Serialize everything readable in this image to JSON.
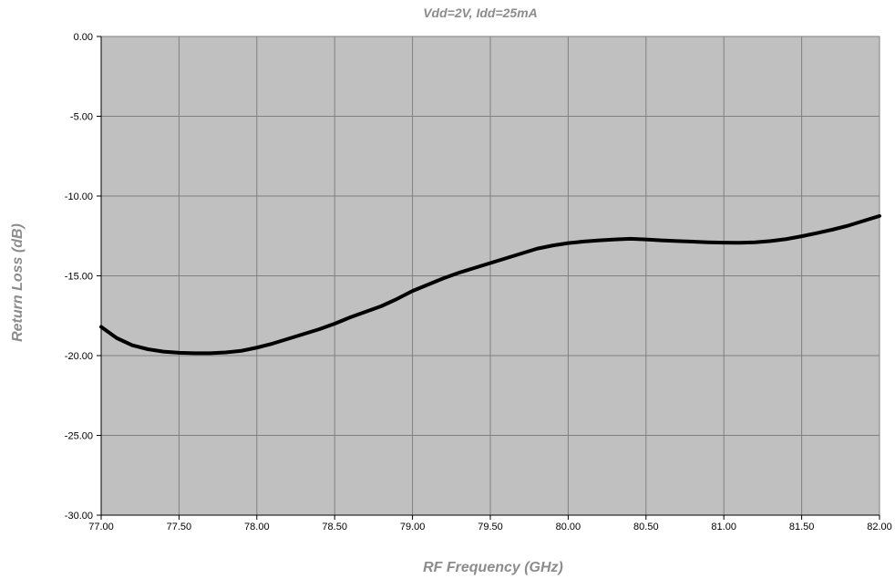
{
  "chart_data": {
    "type": "line",
    "title": "Vdd=2V, Idd=25mA",
    "xlabel": "RF Frequency (GHz)",
    "ylabel": "Return Loss (dB)",
    "xlim": [
      77.0,
      82.0
    ],
    "ylim": [
      -30.0,
      0.0
    ],
    "x_ticks": [
      "77.00",
      "77.50",
      "78.00",
      "78.50",
      "79.00",
      "79.50",
      "80.00",
      "80.50",
      "81.00",
      "81.50",
      "82.00"
    ],
    "y_ticks": [
      "0.00",
      "-5.00",
      "-10.00",
      "-15.00",
      "-20.00",
      "-25.00",
      "-30.00"
    ],
    "grid": true,
    "colors": {
      "plot_background": "#c0c0c0",
      "grid": "#808080",
      "line": "#000000",
      "label_text": "#8c8c8c"
    },
    "series": [
      {
        "x": [
          77.0,
          77.1,
          77.2,
          77.3,
          77.4,
          77.5,
          77.6,
          77.7,
          77.8,
          77.9,
          78.0,
          78.1,
          78.2,
          78.3,
          78.4,
          78.5,
          78.6,
          78.7,
          78.8,
          78.9,
          79.0,
          79.1,
          79.2,
          79.3,
          79.4,
          79.5,
          79.6,
          79.7,
          79.8,
          79.9,
          80.0,
          80.1,
          80.2,
          80.3,
          80.4,
          80.5,
          80.6,
          80.7,
          80.8,
          80.9,
          81.0,
          81.1,
          81.2,
          81.3,
          81.4,
          81.5,
          81.6,
          81.7,
          81.8,
          81.9,
          82.0
        ],
        "values": [
          -18.2,
          -18.9,
          -19.35,
          -19.6,
          -19.75,
          -19.82,
          -19.85,
          -19.85,
          -19.8,
          -19.7,
          -19.5,
          -19.25,
          -18.95,
          -18.65,
          -18.35,
          -18.0,
          -17.6,
          -17.25,
          -16.9,
          -16.45,
          -15.95,
          -15.55,
          -15.15,
          -14.8,
          -14.5,
          -14.2,
          -13.9,
          -13.6,
          -13.3,
          -13.1,
          -12.95,
          -12.85,
          -12.78,
          -12.72,
          -12.68,
          -12.72,
          -12.78,
          -12.82,
          -12.86,
          -12.9,
          -12.92,
          -12.93,
          -12.9,
          -12.82,
          -12.7,
          -12.52,
          -12.32,
          -12.1,
          -11.85,
          -11.55,
          -11.25
        ]
      }
    ]
  }
}
